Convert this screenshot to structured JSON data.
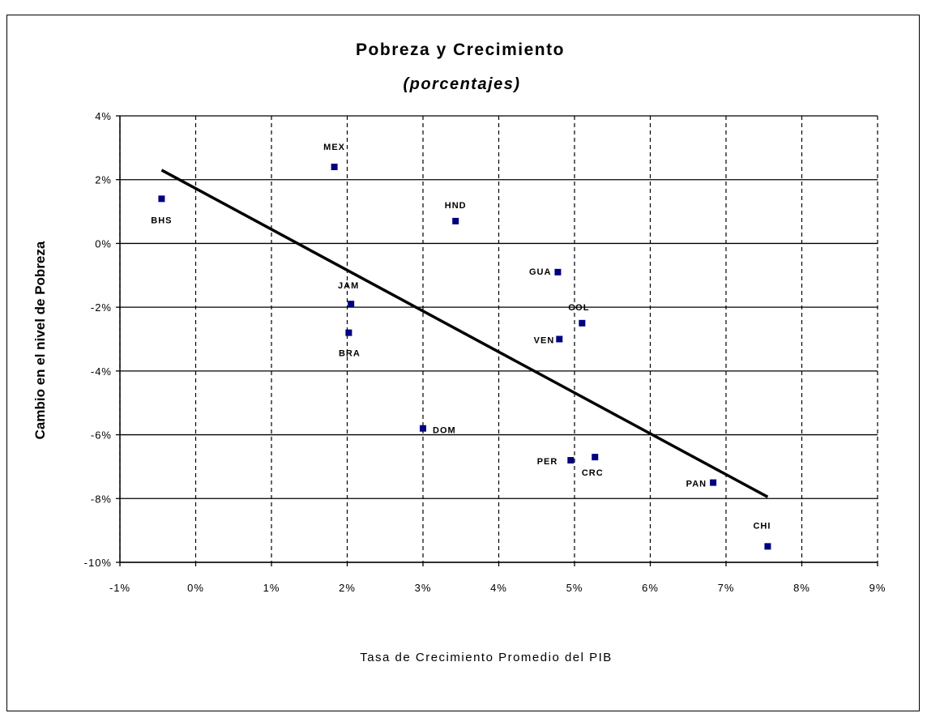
{
  "chart_data": {
    "type": "scatter",
    "title": "Pobreza y Crecimiento",
    "subtitle": "(porcentajes)",
    "xlabel": "Tasa de Crecimiento Promedio del PIB",
    "ylabel": "Cambio en el nivel de Pobreza",
    "xlim": [
      -1,
      9
    ],
    "ylim": [
      -10,
      4
    ],
    "x_ticks": [
      -1,
      0,
      1,
      2,
      3,
      4,
      5,
      6,
      7,
      8,
      9
    ],
    "y_ticks": [
      -10,
      -8,
      -6,
      -4,
      -2,
      0,
      2,
      4
    ],
    "x_tick_labels": [
      "-1%",
      "0%",
      "1%",
      "2%",
      "3%",
      "4%",
      "5%",
      "6%",
      "7%",
      "8%",
      "9%"
    ],
    "y_tick_labels": [
      "-10%",
      "-8%",
      "-6%",
      "-4%",
      "-2%",
      "0%",
      "2%",
      "4%"
    ],
    "grid": {
      "horizontal": "solid",
      "vertical": "dashed"
    },
    "marker_color": "#000080",
    "line_color": "#000000",
    "points": [
      {
        "label": "BHS",
        "x": -0.45,
        "y": 1.4
      },
      {
        "label": "MEX",
        "x": 1.83,
        "y": 2.4
      },
      {
        "label": "HND",
        "x": 3.43,
        "y": 0.7
      },
      {
        "label": "GUA",
        "x": 4.78,
        "y": -0.9
      },
      {
        "label": "JAM",
        "x": 2.05,
        "y": -1.9
      },
      {
        "label": "COL",
        "x": 5.1,
        "y": -2.5
      },
      {
        "label": "BRA",
        "x": 2.02,
        "y": -2.8
      },
      {
        "label": "VEN",
        "x": 4.8,
        "y": -3.0
      },
      {
        "label": "DOM",
        "x": 3.0,
        "y": -5.8
      },
      {
        "label": "PER",
        "x": 4.95,
        "y": -6.8
      },
      {
        "label": "CRC",
        "x": 5.27,
        "y": -6.7
      },
      {
        "label": "PAN",
        "x": 6.83,
        "y": -7.5
      },
      {
        "label": "CHI",
        "x": 7.55,
        "y": -9.5
      }
    ],
    "trendline": [
      {
        "x": -0.45,
        "y": 2.3
      },
      {
        "x": 7.55,
        "y": -7.95
      }
    ]
  }
}
